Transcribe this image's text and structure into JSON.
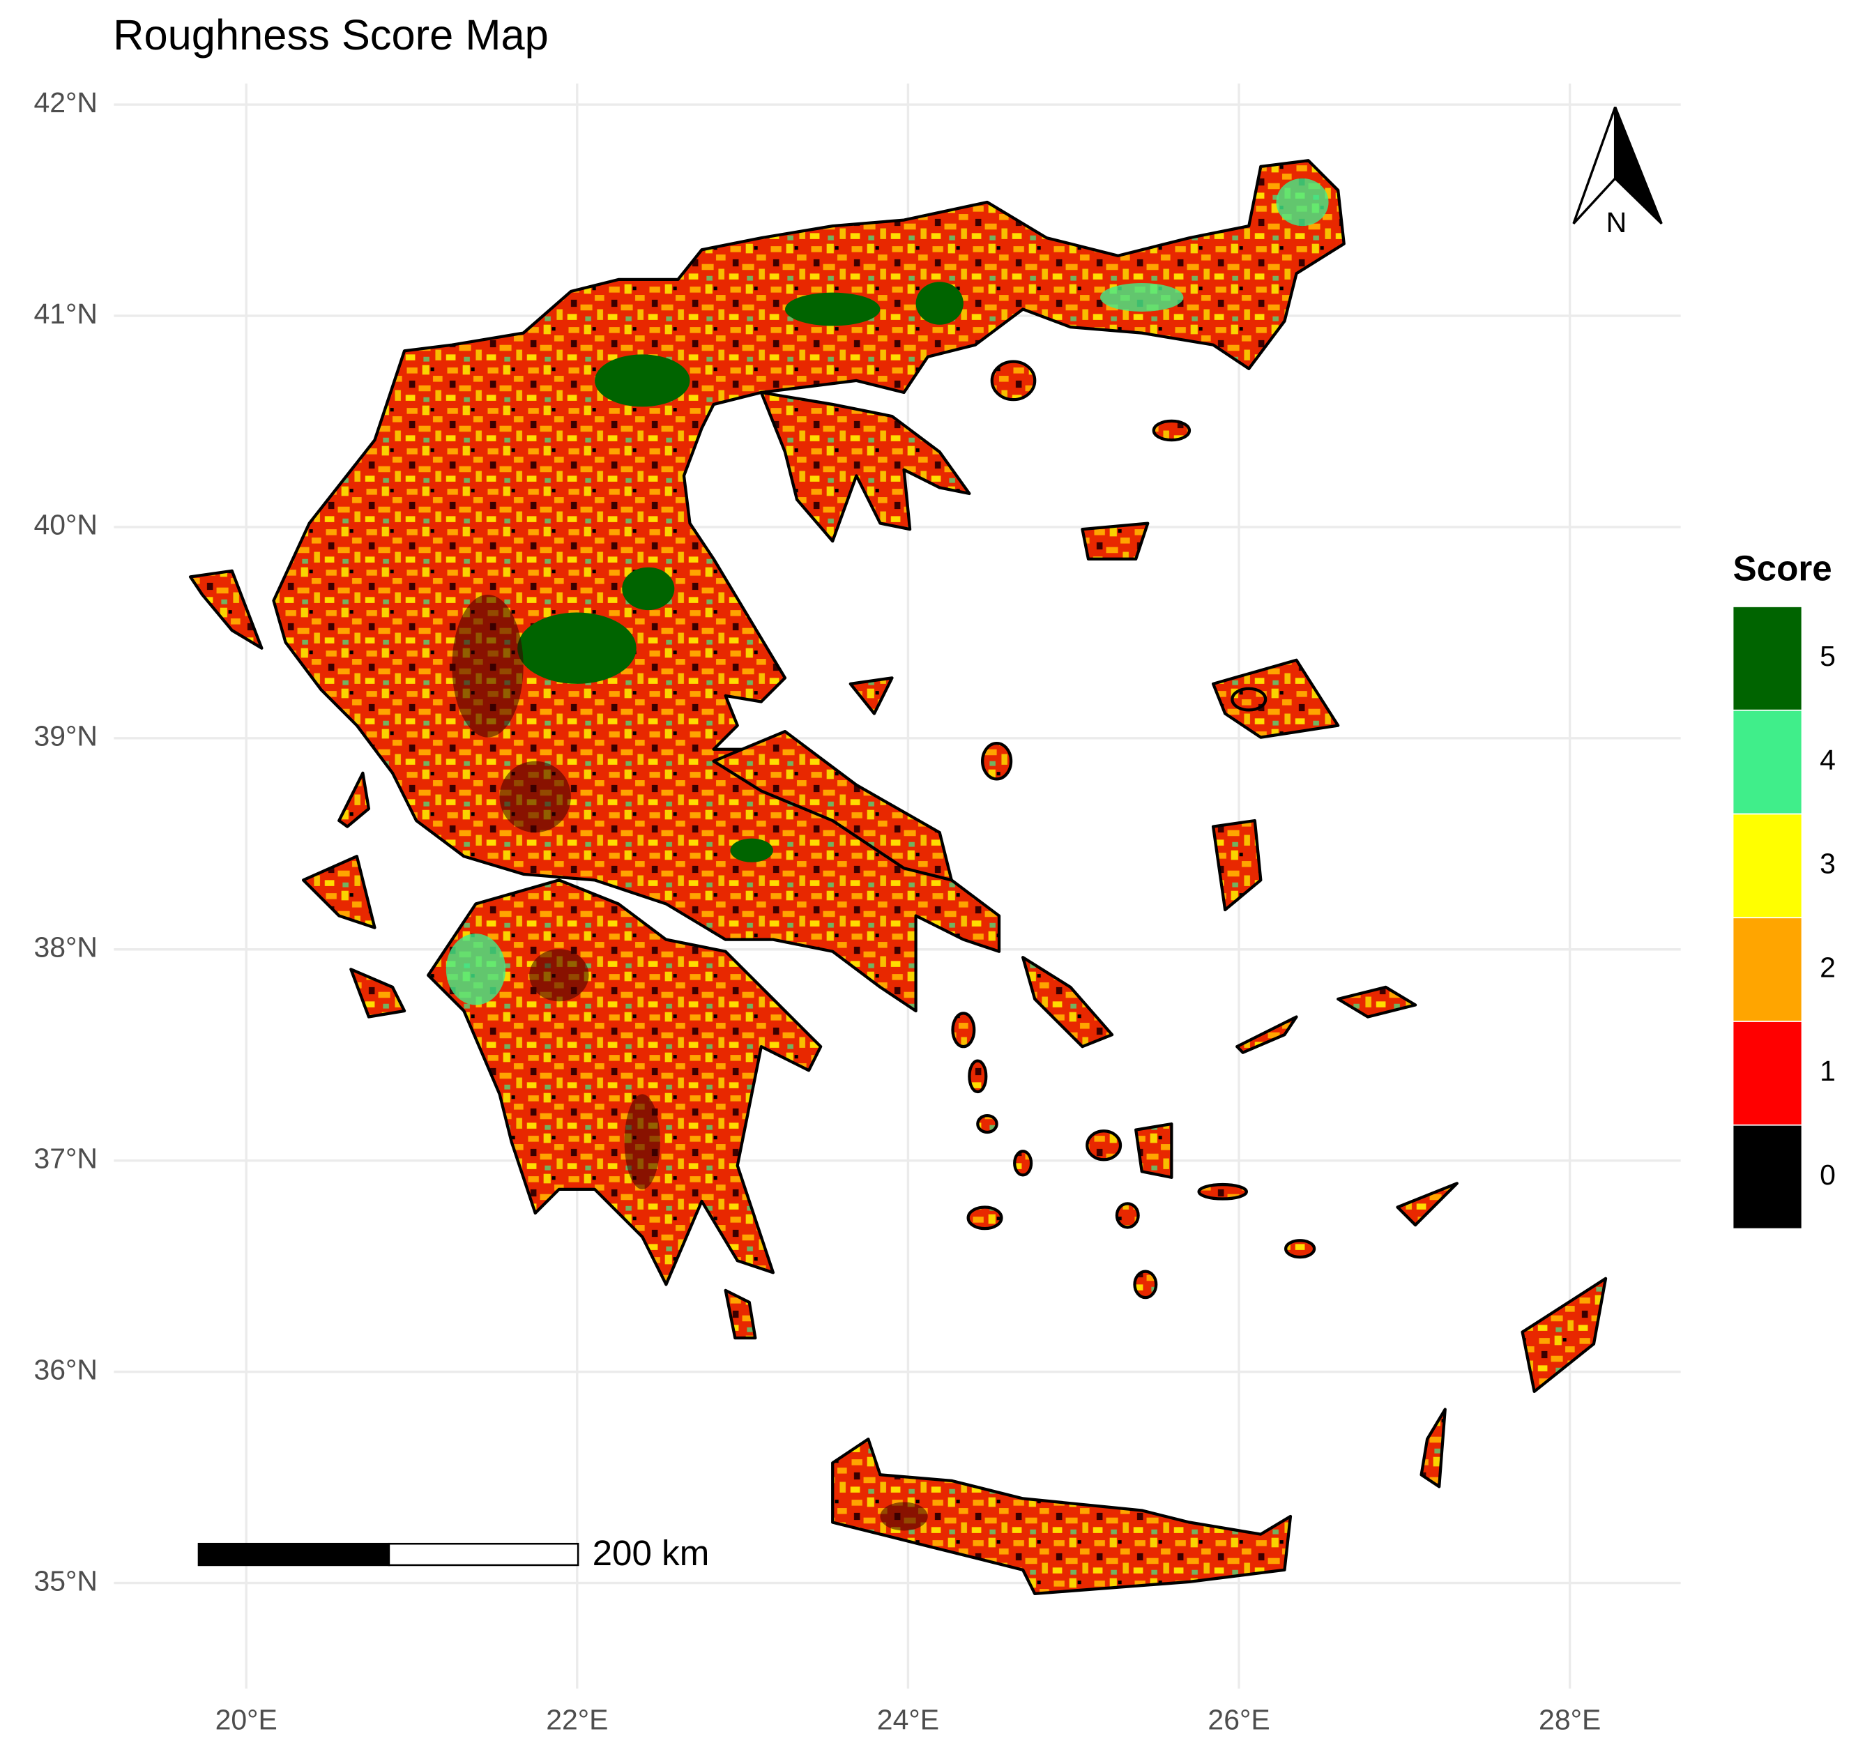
{
  "chart_data": {
    "type": "map",
    "title": "Roughness Score Map",
    "xlim": [
      19.2,
      28.67
    ],
    "ylim": [
      34.5,
      42.1
    ],
    "xticks": [
      {
        "value": 20,
        "label": "20°E"
      },
      {
        "value": 22,
        "label": "22°E"
      },
      {
        "value": 24,
        "label": "24°E"
      },
      {
        "value": 26,
        "label": "26°E"
      },
      {
        "value": 28,
        "label": "28°E"
      }
    ],
    "yticks": [
      {
        "value": 35,
        "label": "35°N"
      },
      {
        "value": 36,
        "label": "36°N"
      },
      {
        "value": 37,
        "label": "37°N"
      },
      {
        "value": 38,
        "label": "38°N"
      },
      {
        "value": 39,
        "label": "39°N"
      },
      {
        "value": 40,
        "label": "40°N"
      },
      {
        "value": 41,
        "label": "41°N"
      },
      {
        "value": 42,
        "label": "42°N"
      }
    ],
    "grid": true,
    "legend": {
      "title": "Score",
      "labels": [
        5,
        4,
        3,
        2,
        1,
        0
      ],
      "colors": [
        "#006400",
        "#40ee8a",
        "#ffff00",
        "#ffa500",
        "#ff0000",
        "#000000"
      ]
    },
    "scale_bar": "200 km",
    "north_arrow": "N"
  }
}
